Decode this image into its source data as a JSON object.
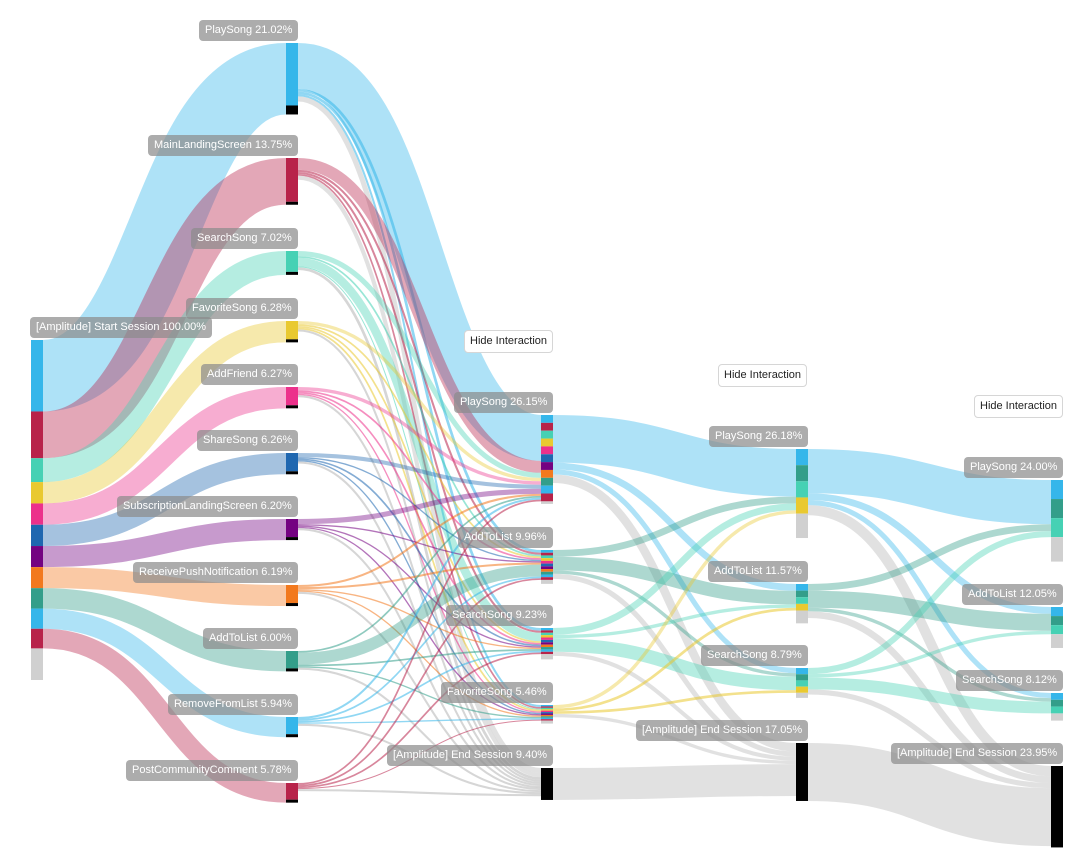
{
  "chart_data": {
    "type": "sankey",
    "value_unit": "% of users",
    "hide_interaction_label": "Hide Interaction",
    "colors": {
      "PlaySong": "#35b6ea",
      "MainLandingScreen": "#b8234a",
      "SearchSong": "#46d1b4",
      "FavoriteSong": "#e9c930",
      "AddFriend": "#ec318b",
      "ShareSong": "#1f67b0",
      "SubscriptionLandingScreen": "#740281",
      "ReceivePushNotification": "#f2791e",
      "AddToList": "#339e8a",
      "RemoveFromList": "#35b6ea",
      "PostCommunityComment": "#b8234a",
      "[Amplitude] End Session": "#000000",
      "[Amplitude] Start Session": "#35b6ea",
      "dropoff": "#cccccc"
    },
    "steps": [
      [
        {
          "name": "[Amplitude] Start Session",
          "value": 100.0
        }
      ],
      [
        {
          "name": "PlaySong",
          "value": 21.02
        },
        {
          "name": "MainLandingScreen",
          "value": 13.75
        },
        {
          "name": "SearchSong",
          "value": 7.02
        },
        {
          "name": "FavoriteSong",
          "value": 6.28
        },
        {
          "name": "AddFriend",
          "value": 6.27
        },
        {
          "name": "ShareSong",
          "value": 6.26
        },
        {
          "name": "SubscriptionLandingScreen",
          "value": 6.2
        },
        {
          "name": "ReceivePushNotification",
          "value": 6.19
        },
        {
          "name": "AddToList",
          "value": 6.0
        },
        {
          "name": "RemoveFromList",
          "value": 5.94
        },
        {
          "name": "PostCommunityComment",
          "value": 5.78
        }
      ],
      [
        {
          "name": "PlaySong",
          "value": 26.15
        },
        {
          "name": "AddToList",
          "value": 9.96
        },
        {
          "name": "SearchSong",
          "value": 9.23
        },
        {
          "name": "FavoriteSong",
          "value": 5.46
        },
        {
          "name": "[Amplitude] End Session",
          "value": 9.4
        }
      ],
      [
        {
          "name": "PlaySong",
          "value": 26.18
        },
        {
          "name": "AddToList",
          "value": 11.57
        },
        {
          "name": "SearchSong",
          "value": 8.79
        },
        {
          "name": "[Amplitude] End Session",
          "value": 17.05
        }
      ],
      [
        {
          "name": "PlaySong",
          "value": 24.0
        },
        {
          "name": "AddToList",
          "value": 12.05
        },
        {
          "name": "SearchSong",
          "value": 8.12
        },
        {
          "name": "[Amplitude] End Session",
          "value": 23.95
        }
      ]
    ],
    "flows": [
      [
        [
          21.02
        ],
        [
          13.75
        ],
        [
          7.02
        ],
        [
          6.28
        ],
        [
          6.27
        ],
        [
          6.26
        ],
        [
          6.2
        ],
        [
          6.19
        ],
        [
          6.0
        ],
        [
          5.94
        ],
        [
          5.78
        ]
      ],
      [
        [
          13.5,
          0.8,
          0.8,
          0.6,
          1.5
        ],
        [
          3.5,
          0.6,
          0.6,
          0.5,
          1.2
        ],
        [
          1.5,
          0.5,
          2.5,
          0.3,
          0.8
        ],
        [
          1.0,
          0.5,
          0.5,
          0.5,
          0.6
        ],
        [
          1.0,
          0.5,
          0.5,
          0.4,
          0.6
        ],
        [
          1.2,
          0.4,
          0.5,
          0.4,
          0.6
        ],
        [
          1.5,
          0.4,
          0.4,
          0.4,
          0.6
        ],
        [
          0.6,
          0.6,
          0.4,
          0.4,
          0.6
        ],
        [
          0.5,
          3.5,
          0.5,
          0.4,
          0.6
        ],
        [
          0.6,
          0.5,
          0.5,
          0.4,
          0.6
        ],
        [
          0.5,
          0.5,
          0.5,
          0.3,
          0.6
        ]
      ],
      [
        [
          14,
          2,
          1.5,
          2.5
        ],
        [
          2,
          4,
          1,
          1.5
        ],
        [
          2,
          1,
          4,
          1.2
        ],
        [
          1,
          0.8,
          0.8,
          1
        ],
        [
          0,
          0,
          0,
          9.4
        ]
      ],
      [
        [
          13,
          2,
          1.5,
          3
        ],
        [
          2,
          5,
          1,
          2
        ],
        [
          1.8,
          1,
          3.5,
          1.5
        ],
        [
          0,
          0,
          0,
          17.05
        ]
      ]
    ]
  }
}
